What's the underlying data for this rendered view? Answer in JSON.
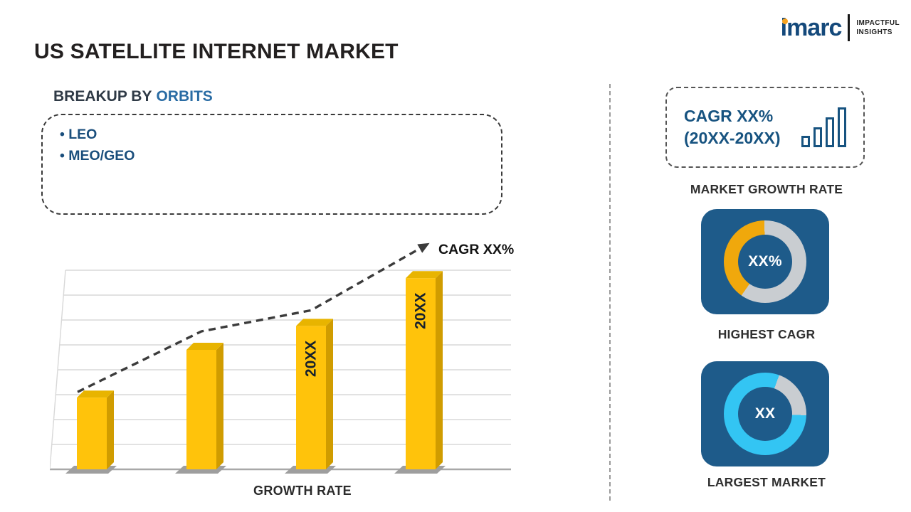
{
  "page": {
    "title": "US SATELLITE INTERNET MARKET"
  },
  "logo": {
    "brand": "imarc",
    "tagline_top": "IMPACTFUL",
    "tagline_bottom": "INSIGHTS"
  },
  "breakup": {
    "label_prefix": "BREAKUP BY",
    "label_highlight": "ORBITS",
    "items": [
      "LEO",
      "MEO/GEO"
    ]
  },
  "chart_data": [
    {
      "type": "bar",
      "title": "",
      "xlabel": "GROWTH RATE",
      "ylabel": "",
      "categories": [
        "",
        "",
        "20XX",
        "20XX"
      ],
      "values": [
        36,
        60,
        72,
        96
      ],
      "value_note": "relative bar heights in % of tallest gridline; y-axis has no tick labels",
      "ylim": [
        0,
        100
      ],
      "grid": true,
      "bar_color": "#FFC30B",
      "trend_label": "CAGR XX%",
      "trend_style": "dashed-arrow"
    },
    {
      "type": "donut",
      "label": "HIGHEST CAGR",
      "center_text": "XX%",
      "segment_percent": 40,
      "segment_color": "#F0A80C",
      "track_color": "#C9CDD1",
      "start_deg": 215
    },
    {
      "type": "donut",
      "label": "LARGEST MARKET",
      "center_text": "XX",
      "segment_percent": 80,
      "segment_color": "#33C5F3",
      "track_color": "#C9CDD1",
      "start_deg": 92
    }
  ],
  "right_panel": {
    "growth_box": {
      "line1": "CAGR XX%",
      "line2": "(20XX-20XX)",
      "icon": "bar-chart-icon"
    },
    "growth_caption": "MARKET GROWTH RATE"
  },
  "colors": {
    "brand_navy": "#14497B",
    "accent_blue": "#175380",
    "card_blue": "#1E5B8A",
    "bar_yellow": "#FFC30B",
    "donut_yellow": "#F0A80C",
    "donut_cyan": "#33C5F3",
    "track_gray": "#C9CDD1"
  }
}
